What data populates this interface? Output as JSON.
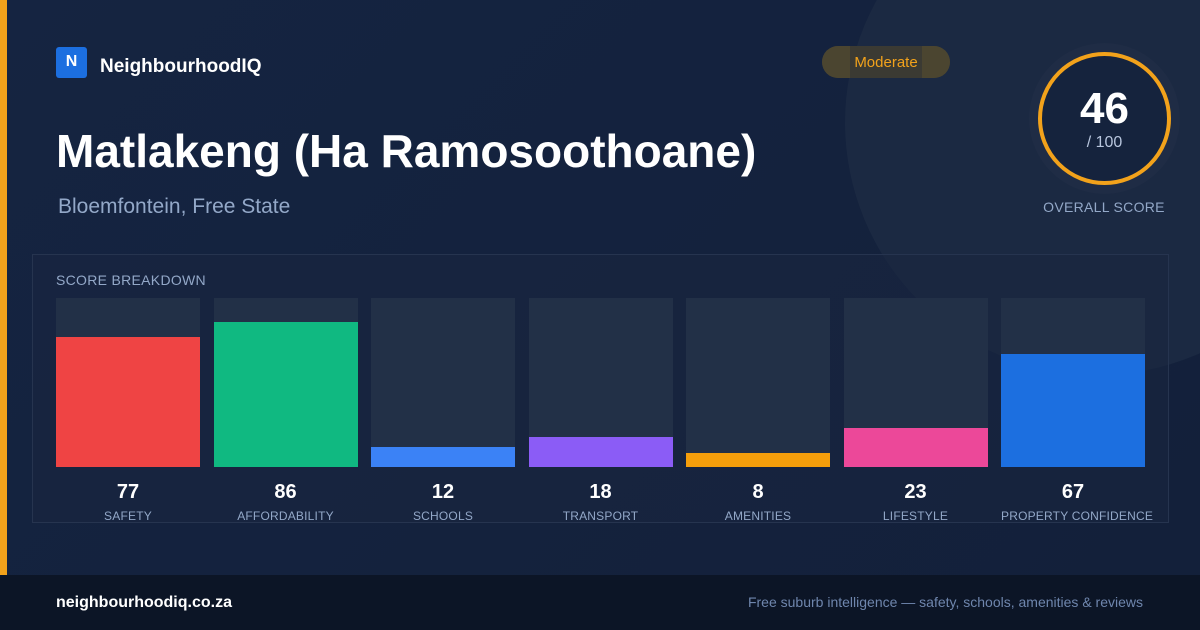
{
  "brand": {
    "logo_letter": "N",
    "name": "NeighbourhoodIQ"
  },
  "badge": {
    "label": "Moderate",
    "color": "#f2a21b"
  },
  "suburb": {
    "name": "Matlakeng (Ha Ramosoothoane)",
    "location": "Bloemfontein, Free State"
  },
  "overall": {
    "value": "46",
    "max_label": "/ 100",
    "label": "OVERALL SCORE",
    "ring_color": "#f2a21b"
  },
  "breakdown": {
    "title": "SCORE BREAKDOWN",
    "items": [
      {
        "value": "77",
        "label": "SAFETY",
        "color": "#ef4444"
      },
      {
        "value": "86",
        "label": "AFFORDABILITY",
        "color": "#10b981"
      },
      {
        "value": "12",
        "label": "SCHOOLS",
        "color": "#3b82f6"
      },
      {
        "value": "18",
        "label": "TRANSPORT",
        "color": "#8b5cf6"
      },
      {
        "value": "8",
        "label": "AMENITIES",
        "color": "#f59e0b"
      },
      {
        "value": "23",
        "label": "LIFESTYLE",
        "color": "#ec4899"
      },
      {
        "value": "67",
        "label": "PROPERTY CONFIDENCE",
        "color": "#1c6fe0"
      }
    ]
  },
  "chart_data": {
    "type": "bar",
    "title": "SCORE BREAKDOWN",
    "categories": [
      "SAFETY",
      "AFFORDABILITY",
      "SCHOOLS",
      "TRANSPORT",
      "AMENITIES",
      "LIFESTYLE",
      "PROPERTY CONFIDENCE"
    ],
    "values": [
      77,
      86,
      12,
      18,
      8,
      23,
      67
    ],
    "ylim": [
      0,
      100
    ],
    "grid": false
  },
  "footer": {
    "url": "neighbourhoodiq.co.za",
    "tagline": "Free suburb intelligence — safety, schools, amenities & reviews"
  }
}
